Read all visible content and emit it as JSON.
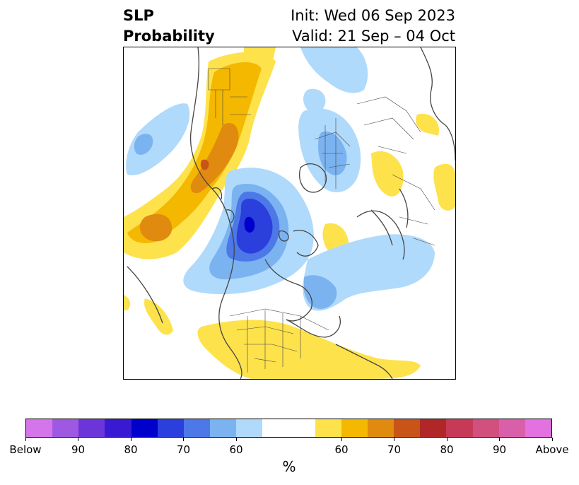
{
  "title": {
    "left_line1": "SLP",
    "left_line2": "Probability",
    "right_line1": "Init: Wed 06 Sep 2023",
    "right_line2": "Valid: 21 Sep – 04 Oct"
  },
  "colorbar": {
    "unit": "%",
    "colors": [
      "#d575ea",
      "#9f58e2",
      "#6c35d9",
      "#3a19d2",
      "#0000cc",
      "#2a3fdc",
      "#4d78e8",
      "#7bb3f1",
      "#b0dafb",
      "#ffffff",
      "#fde24b",
      "#f4b800",
      "#e08b10",
      "#c95417",
      "#b12627",
      "#c63a58",
      "#d1507e",
      "#da5fab",
      "#e371df"
    ],
    "tick_labels": [
      "Below",
      "90",
      "80",
      "70",
      "60",
      "60",
      "70",
      "80",
      "90",
      "Above"
    ]
  },
  "palette": {
    "land_lines": "#444444",
    "above_light": "#fde24b",
    "above_mid": "#f4b800",
    "above_high": "#e08b10",
    "above_top": "#c95417",
    "below_light": "#b0dafb",
    "below_mid": "#7bb3f1",
    "below_high": "#4d78e8",
    "below_top": "#2a3fdc",
    "below_max": "#0000cc"
  }
}
